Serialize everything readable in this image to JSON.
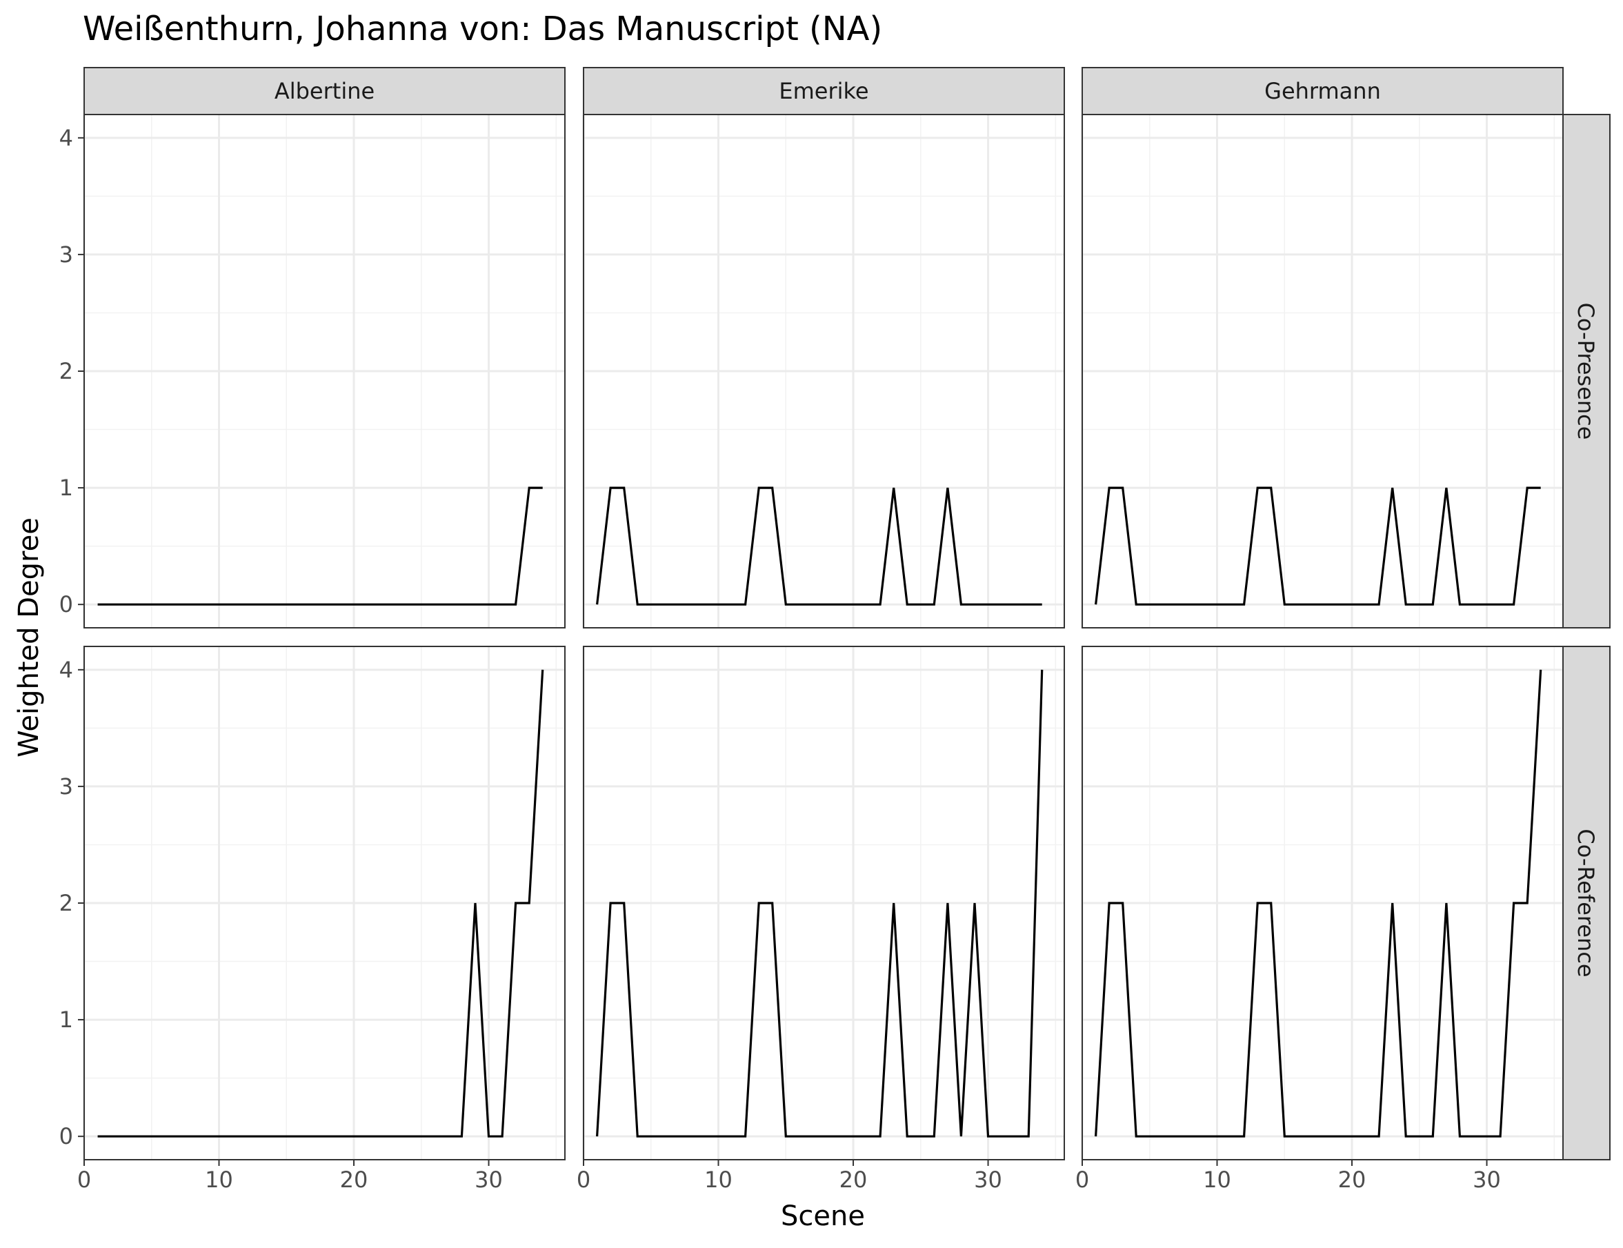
{
  "chart_data": {
    "type": "line",
    "title": "Weißenthurn, Johanna von: Das Manuscript (NA)",
    "xlabel": "Scene",
    "ylabel": "Weighted Degree",
    "xlim": [
      0,
      35.65
    ],
    "ylim": [
      -0.2,
      4.2
    ],
    "x_ticks": [
      0,
      10,
      20,
      30
    ],
    "y_ticks": [
      0,
      1,
      2,
      3,
      4
    ],
    "grid": true,
    "facet_columns": [
      "Albertine",
      "Emerike",
      "Gehrmann"
    ],
    "facet_rows": [
      "Co-Presence",
      "Co-Reference"
    ],
    "panels": [
      {
        "column": "Albertine",
        "row": "Co-Presence",
        "x": [
          1,
          2,
          3,
          4,
          5,
          6,
          7,
          8,
          9,
          10,
          11,
          12,
          13,
          14,
          15,
          16,
          17,
          18,
          19,
          20,
          21,
          22,
          23,
          24,
          25,
          26,
          27,
          28,
          29,
          30,
          31,
          32,
          33,
          34
        ],
        "y": [
          0,
          0,
          0,
          0,
          0,
          0,
          0,
          0,
          0,
          0,
          0,
          0,
          0,
          0,
          0,
          0,
          0,
          0,
          0,
          0,
          0,
          0,
          0,
          0,
          0,
          0,
          0,
          0,
          0,
          0,
          0,
          0,
          1,
          1
        ]
      },
      {
        "column": "Emerike",
        "row": "Co-Presence",
        "x": [
          1,
          2,
          3,
          4,
          5,
          6,
          7,
          8,
          9,
          10,
          11,
          12,
          13,
          14,
          15,
          16,
          17,
          18,
          19,
          20,
          21,
          22,
          23,
          24,
          25,
          26,
          27,
          28,
          29,
          30,
          31,
          32,
          33,
          34
        ],
        "y": [
          0,
          1,
          1,
          0,
          0,
          0,
          0,
          0,
          0,
          0,
          0,
          0,
          1,
          1,
          0,
          0,
          0,
          0,
          0,
          0,
          0,
          0,
          1,
          0,
          0,
          0,
          1,
          0,
          0,
          0,
          0,
          0,
          0,
          0
        ]
      },
      {
        "column": "Gehrmann",
        "row": "Co-Presence",
        "x": [
          1,
          2,
          3,
          4,
          5,
          6,
          7,
          8,
          9,
          10,
          11,
          12,
          13,
          14,
          15,
          16,
          17,
          18,
          19,
          20,
          21,
          22,
          23,
          24,
          25,
          26,
          27,
          28,
          29,
          30,
          31,
          32,
          33,
          34
        ],
        "y": [
          0,
          1,
          1,
          0,
          0,
          0,
          0,
          0,
          0,
          0,
          0,
          0,
          1,
          1,
          0,
          0,
          0,
          0,
          0,
          0,
          0,
          0,
          1,
          0,
          0,
          0,
          1,
          0,
          0,
          0,
          0,
          0,
          1,
          1
        ]
      },
      {
        "column": "Albertine",
        "row": "Co-Reference",
        "x": [
          1,
          2,
          3,
          4,
          5,
          6,
          7,
          8,
          9,
          10,
          11,
          12,
          13,
          14,
          15,
          16,
          17,
          18,
          19,
          20,
          21,
          22,
          23,
          24,
          25,
          26,
          27,
          28,
          29,
          30,
          31,
          32,
          33,
          34
        ],
        "y": [
          0,
          0,
          0,
          0,
          0,
          0,
          0,
          0,
          0,
          0,
          0,
          0,
          0,
          0,
          0,
          0,
          0,
          0,
          0,
          0,
          0,
          0,
          0,
          0,
          0,
          0,
          0,
          0,
          2,
          0,
          0,
          2,
          2,
          4
        ]
      },
      {
        "column": "Emerike",
        "row": "Co-Reference",
        "x": [
          1,
          2,
          3,
          4,
          5,
          6,
          7,
          8,
          9,
          10,
          11,
          12,
          13,
          14,
          15,
          16,
          17,
          18,
          19,
          20,
          21,
          22,
          23,
          24,
          25,
          26,
          27,
          28,
          29,
          30,
          31,
          32,
          33,
          34
        ],
        "y": [
          0,
          2,
          2,
          0,
          0,
          0,
          0,
          0,
          0,
          0,
          0,
          0,
          2,
          2,
          0,
          0,
          0,
          0,
          0,
          0,
          0,
          0,
          2,
          0,
          0,
          0,
          2,
          0,
          2,
          0,
          0,
          0,
          0,
          4
        ]
      },
      {
        "column": "Gehrmann",
        "row": "Co-Reference",
        "x": [
          1,
          2,
          3,
          4,
          5,
          6,
          7,
          8,
          9,
          10,
          11,
          12,
          13,
          14,
          15,
          16,
          17,
          18,
          19,
          20,
          21,
          22,
          23,
          24,
          25,
          26,
          27,
          28,
          29,
          30,
          31,
          32,
          33,
          34
        ],
        "y": [
          0,
          2,
          2,
          0,
          0,
          0,
          0,
          0,
          0,
          0,
          0,
          0,
          2,
          2,
          0,
          0,
          0,
          0,
          0,
          0,
          0,
          0,
          2,
          0,
          0,
          0,
          2,
          0,
          0,
          0,
          0,
          2,
          2,
          4
        ]
      }
    ]
  }
}
